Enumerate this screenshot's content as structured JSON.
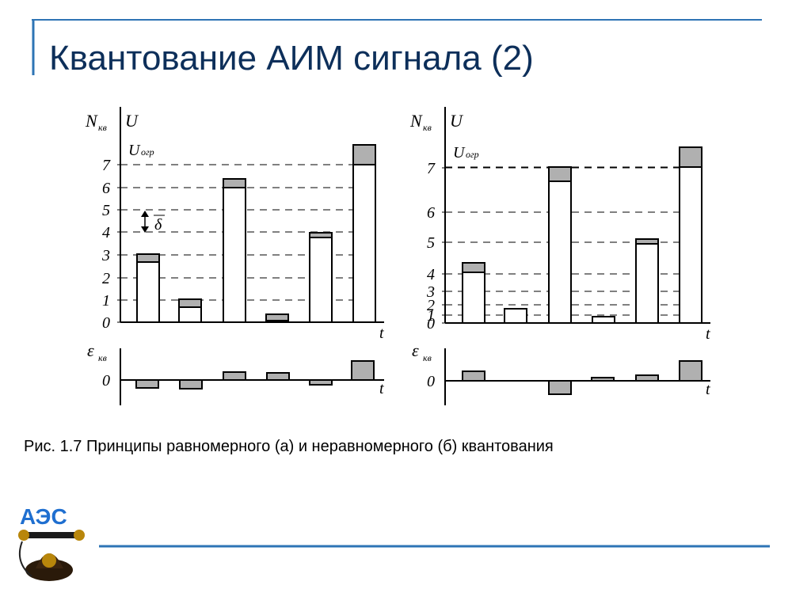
{
  "title": "Квантование АИМ сигнала (2)",
  "caption": "Рис. 1.7  Принципы равномерного (а) и неравномерного (б) квантования",
  "logo": "АЭС",
  "panels": [
    {
      "n_label": "N",
      "n_sub": "кв",
      "u_label": "U",
      "limit_label": "U",
      "limit_sub": "огр",
      "levels": [
        "0",
        "1",
        "2",
        "3",
        "4",
        "5",
        "6",
        "7"
      ],
      "step_label": "δ",
      "t_label": "t",
      "error_label": "ε",
      "error_sub": "кв",
      "error_zero": "0",
      "error_t_label": "t"
    },
    {
      "n_label": "N",
      "n_sub": "кв",
      "u_label": "U",
      "limit_label": "U",
      "limit_sub": "огр",
      "levels": [
        "0",
        "1",
        "2",
        "3",
        "4",
        "5",
        "6",
        "7"
      ],
      "t_label": "t",
      "error_label": "ε",
      "error_sub": "кв",
      "error_zero": "0",
      "error_t_label": "t"
    }
  ]
}
